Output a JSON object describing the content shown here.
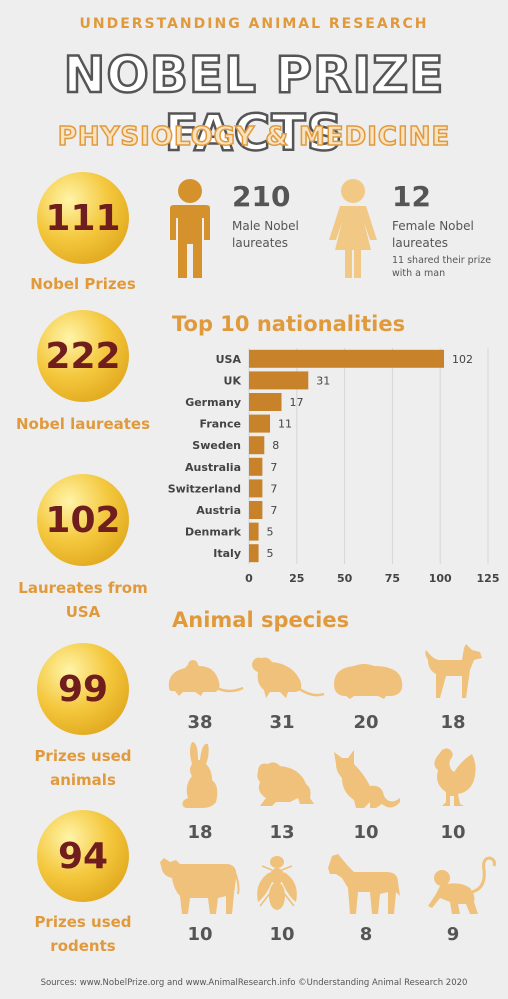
{
  "header": {
    "brand": "UNDERSTANDING ANIMAL RESEARCH",
    "title": "NOBEL PRIZE FACTS",
    "subtitle": "PHYSIOLOGY & MEDICINE"
  },
  "stats": [
    {
      "value": "111",
      "label": "Nobel Prizes"
    },
    {
      "value": "222",
      "label": "Nobel laureates"
    },
    {
      "value": "102",
      "label": "Laureates from USA"
    },
    {
      "value": "99",
      "label": "Prizes used animals"
    },
    {
      "value": "94",
      "label": "Prizes used rodents"
    }
  ],
  "gender": {
    "male": {
      "value": "210",
      "label": "Male Nobel laureates",
      "icon": "male-person-icon"
    },
    "female": {
      "value": "12",
      "label": "Female Nobel laureates",
      "note": "11 shared their prize with a man",
      "icon": "female-person-icon"
    }
  },
  "chart_data": {
    "type": "bar",
    "orientation": "horizontal",
    "title": "Top 10 nationalities",
    "categories": [
      "USA",
      "UK",
      "Germany",
      "France",
      "Sweden",
      "Australia",
      "Switzerland",
      "Austria",
      "Denmark",
      "Italy"
    ],
    "values": [
      102,
      31,
      17,
      11,
      8,
      7,
      7,
      7,
      5,
      5
    ],
    "xlim": [
      0,
      125
    ],
    "xticks": [
      0,
      25,
      50,
      75,
      100,
      125
    ],
    "grid": true,
    "bar_color": "#c8832a"
  },
  "species": {
    "title": "Animal species",
    "items": [
      {
        "icon": "mouse-icon",
        "count": "38"
      },
      {
        "icon": "rat-icon",
        "count": "31"
      },
      {
        "icon": "guinea-pig-icon",
        "count": "20"
      },
      {
        "icon": "dog-icon",
        "count": "18"
      },
      {
        "icon": "rabbit-icon",
        "count": "18"
      },
      {
        "icon": "frog-icon",
        "count": "13"
      },
      {
        "icon": "cat-icon",
        "count": "10"
      },
      {
        "icon": "chicken-icon",
        "count": "10"
      },
      {
        "icon": "cow-icon",
        "count": "10"
      },
      {
        "icon": "fly-icon",
        "count": "10"
      },
      {
        "icon": "horse-icon",
        "count": "8"
      },
      {
        "icon": "monkey-icon",
        "count": "9"
      }
    ]
  },
  "colors": {
    "accent": "#e09a3c",
    "icon": "#efc17a",
    "person": "#d4912c",
    "coin_text": "#6f1d1d"
  },
  "footer": {
    "sources": "Sources: www.NobelPrize.org and www.AnimalResearch.info ©Understanding Animal Research 2020"
  }
}
